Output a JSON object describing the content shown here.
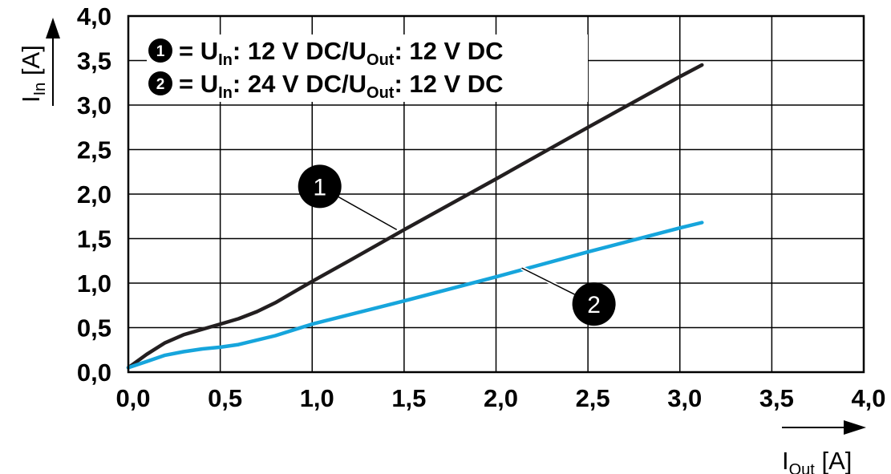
{
  "chart_data": {
    "type": "line",
    "xlabel": {
      "main": "I",
      "sub": "Out",
      "unit": "[A]"
    },
    "ylabel": {
      "main": "I",
      "sub": "In",
      "unit": "[A]"
    },
    "xlim": [
      0,
      4
    ],
    "ylim": [
      0,
      4
    ],
    "grid": true,
    "x_ticks": [
      "0,0",
      "0,5",
      "1,0",
      "1,5",
      "2,0",
      "2,5",
      "3,0",
      "3,5",
      "4,0"
    ],
    "y_ticks": [
      "0,0",
      "0,5",
      "1,0",
      "1,5",
      "2,0",
      "2,5",
      "3,0",
      "3,5",
      "4,0"
    ],
    "legend_position": "top-left",
    "legend": [
      {
        "marker": "1",
        "eq": "=",
        "u1": "U",
        "u1_sub": "In",
        "v1": ": 12 V DC/",
        "u2": "U",
        "u2_sub": "Out",
        "v2": ": 12 V DC"
      },
      {
        "marker": "2",
        "eq": "=",
        "u1": "U",
        "u1_sub": "In",
        "v1": ": 24 V DC/",
        "u2": "U",
        "u2_sub": "Out",
        "v2": ": 12 V DC"
      }
    ],
    "series": [
      {
        "marker": "1",
        "color": "#231f20",
        "x": [
          0,
          0.1,
          0.2,
          0.3,
          0.4,
          0.5,
          0.6,
          0.7,
          0.8,
          0.9,
          1.0,
          1.2,
          1.5,
          2.0,
          2.5,
          3.0,
          3.12
        ],
        "y": [
          0.05,
          0.2,
          0.33,
          0.42,
          0.48,
          0.54,
          0.6,
          0.68,
          0.78,
          0.9,
          1.02,
          1.25,
          1.6,
          2.17,
          2.75,
          3.32,
          3.45
        ]
      },
      {
        "marker": "2",
        "color": "#16a5dc",
        "x": [
          0,
          0.1,
          0.2,
          0.3,
          0.4,
          0.5,
          0.6,
          0.8,
          1.0,
          1.5,
          2.0,
          2.5,
          3.0,
          3.12
        ],
        "y": [
          0.05,
          0.12,
          0.19,
          0.23,
          0.26,
          0.28,
          0.31,
          0.41,
          0.54,
          0.8,
          1.07,
          1.35,
          1.62,
          1.68
        ]
      }
    ],
    "callouts": [
      {
        "marker": "1",
        "x": 1.46,
        "y": 1.6
      },
      {
        "marker": "2",
        "x": 2.14,
        "y": 1.17
      }
    ]
  }
}
